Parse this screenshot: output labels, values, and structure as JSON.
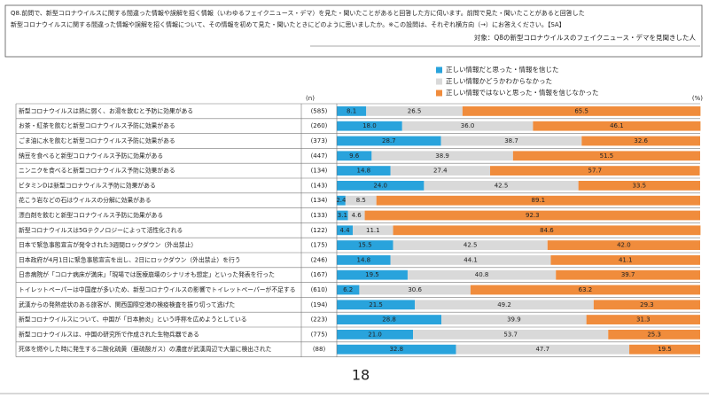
{
  "chart_data": {
    "type": "bar",
    "orientation": "horizontal",
    "stacked": true,
    "title_lines": [
      "Q8.前問で、新型コロナウイルスに関する間違った情報や誤解を招く情報（いわゆるフェイクニュース・デマ）を見た・聞いたことがあると回答した方に伺います。前問で見た・聞いたことがあると回答した",
      "新型コロナウイルスに関する間違った情報や誤解を招く情報について、その情報を初めて見た・聞いたときにどのように思いましたか。※この設問は、それぞれ横方向（→）にお答えください。【SA】"
    ],
    "target": "対象：Q8の新型コロナウイルスのフェイクニュース・デマを見聞きした人",
    "n_header": "(n)",
    "unit": "(%)",
    "page_number": "18",
    "categories": [
      "新型コロナウイルスは熱に弱く、お湯を飲むと予防に効果がある",
      "お茶・紅茶を飲むと新型コロナウイルス予防に効果がある",
      "ごま油に水を飲むと新型コロナウイルス予防に効果がある",
      "納豆を食べると新型コロナウイルス予防に効果がある",
      "ニンニクを食べると新型コロナウイルス予防に効果がある",
      "ビタミンDは新型コロナウイルス予防に効果がある",
      "花こう岩などの石はウイルスの分解に効果がある",
      "漂白剤を飲むと新型コロナウイルス予防に効果がある",
      "新型コロナウイルスは5Gテクノロジーによって活性化される",
      "日本で緊急事態宣言が発令された3週間ロックダウン（外出禁止）",
      "日本政府が4月1日に緊急事態宣言を出し、2日にロックダウン（外出禁止）を行う",
      "日赤病院が「コロナ病床が満床」「現場では医療崩壊のシナリオも想定」といった発表を行った",
      "トイレットペーパーは中国産が多いため、新型コロナウイルスの影響でトイレットペーパーが不足する",
      "武漢からの発熱症状のある旅客が、関西国際空港の検疫検査を振り切って逃げた",
      "新型コロナウイルスについて、中国が「日本肺炎」という呼称を広めようとしている",
      "新型コロナウイルスは、中国の研究所で作成された生物兵器である",
      "死体を燃やした時に発生する二酸化硫黄（亜硫酸ガス）の濃度が武漢周辺で大量に検出された"
    ],
    "n": [
      "(585)",
      "(260)",
      "(373)",
      "(447)",
      "(134)",
      "(143)",
      "(134)",
      "(133)",
      "(122)",
      "(175)",
      "(246)",
      "(167)",
      "(610)",
      "(194)",
      "(223)",
      "(775)",
      "(88)"
    ],
    "xlim": [
      0,
      100
    ],
    "series": [
      {
        "name": "正しい情報だと思った・情報を信じた",
        "color": "#29a3dc",
        "values": [
          8.1,
          18.0,
          28.7,
          9.6,
          14.8,
          24.0,
          2.4,
          3.1,
          4.4,
          15.5,
          14.8,
          19.5,
          6.2,
          21.5,
          28.8,
          21.0,
          32.8
        ],
        "value_labels": [
          "8.1",
          "18.0",
          "28.7",
          "9.6",
          "14.8",
          "24.0",
          "2.4",
          "3.1",
          "4.4",
          "15.5",
          "14.8",
          "19.5",
          "6.2",
          "21.5",
          "28.8",
          "21.0",
          "32.8"
        ]
      },
      {
        "name": "正しい情報かどうかわからなかった",
        "color": "#d9d9d9",
        "values": [
          26.5,
          36.0,
          38.7,
          38.9,
          27.4,
          42.5,
          8.5,
          4.6,
          11.1,
          42.5,
          44.1,
          40.8,
          30.6,
          49.2,
          39.9,
          53.7,
          47.7
        ],
        "value_labels": [
          "26.5",
          "36.0",
          "38.7",
          "38.9",
          "27.4",
          "42.5",
          "8.5",
          "4.6",
          "11.1",
          "42.5",
          "44.1",
          "40.8",
          "30.6",
          "49.2",
          "39.9",
          "53.7",
          "47.7"
        ]
      },
      {
        "name": "正しい情報ではないと思った・情報を信じなかった",
        "color": "#f08c3c",
        "values": [
          65.5,
          46.1,
          32.6,
          51.5,
          57.7,
          33.5,
          89.1,
          92.3,
          84.6,
          42.0,
          41.1,
          39.7,
          63.2,
          29.3,
          31.3,
          25.3,
          19.5
        ],
        "value_labels": [
          "65.5",
          "46.1",
          "32.6",
          "51.5",
          "57.7",
          "33.5",
          "89.1",
          "92.3",
          "84.6",
          "42.0",
          "41.1",
          "39.7",
          "63.2",
          "29.3",
          "31.3",
          "25.3",
          "19.5"
        ]
      }
    ]
  }
}
